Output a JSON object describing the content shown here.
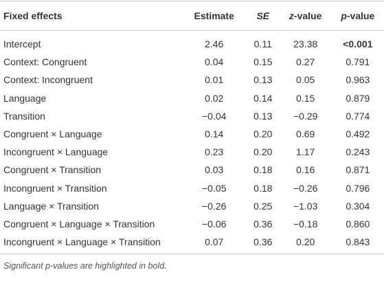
{
  "table": {
    "header": [
      "Fixed effects",
      "Estimate",
      "SE",
      "z-value",
      "p-value"
    ],
    "rows": [
      [
        "Intercept",
        "2.46",
        "0.11",
        "23.38",
        "<0.001"
      ],
      [
        "Context: Congruent",
        "0.04",
        "0.15",
        "0.27",
        "0.791"
      ],
      [
        "Context: Incongruent",
        "0.01",
        "0.13",
        "0.05",
        "0.963"
      ],
      [
        "Language",
        "0.02",
        "0.14",
        "0.15",
        "0.879"
      ],
      [
        "Transition",
        "−0.04",
        "0.13",
        "−0.29",
        "0.774"
      ],
      [
        "Congruent × Language",
        "0.14",
        "0.20",
        "0.69",
        "0.492"
      ],
      [
        "Incongruent × Language",
        "0.23",
        "0.20",
        "1.17",
        "0.243"
      ],
      [
        "Congruent × Transition",
        "0.03",
        "0.18",
        "0.16",
        "0.871"
      ],
      [
        "Incongruent × Transition",
        "−0.05",
        "0.18",
        "−0.26",
        "0.796"
      ],
      [
        "Language × Transition",
        "−0.26",
        "0.25",
        "−1.03",
        "0.304"
      ],
      [
        "Congruent × Language × Transition",
        "−0.06",
        "0.36",
        "−0.18",
        "0.860"
      ],
      [
        "Incongruent × Language × Transition",
        "0.07",
        "0.36",
        "0.20",
        "0.843"
      ]
    ],
    "footnote": "Significant p-values are highlighted in bold."
  }
}
